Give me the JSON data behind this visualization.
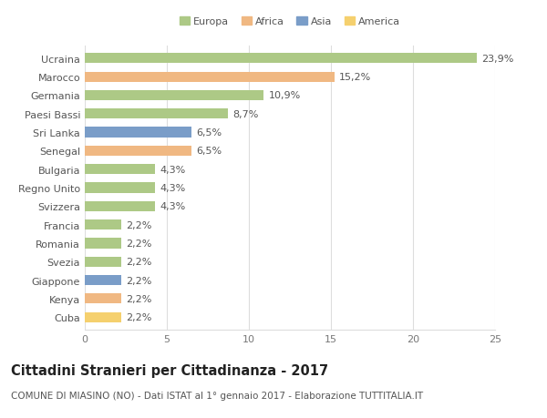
{
  "categories": [
    "Ucraina",
    "Marocco",
    "Germania",
    "Paesi Bassi",
    "Sri Lanka",
    "Senegal",
    "Bulgaria",
    "Regno Unito",
    "Svizzera",
    "Francia",
    "Romania",
    "Svezia",
    "Giappone",
    "Kenya",
    "Cuba"
  ],
  "values": [
    23.9,
    15.2,
    10.9,
    8.7,
    6.5,
    6.5,
    4.3,
    4.3,
    4.3,
    2.2,
    2.2,
    2.2,
    2.2,
    2.2,
    2.2
  ],
  "labels": [
    "23,9%",
    "15,2%",
    "10,9%",
    "8,7%",
    "6,5%",
    "6,5%",
    "4,3%",
    "4,3%",
    "4,3%",
    "2,2%",
    "2,2%",
    "2,2%",
    "2,2%",
    "2,2%",
    "2,2%"
  ],
  "continents": [
    "Europa",
    "Africa",
    "Europa",
    "Europa",
    "Asia",
    "Africa",
    "Europa",
    "Europa",
    "Europa",
    "Europa",
    "Europa",
    "Europa",
    "Asia",
    "Africa",
    "America"
  ],
  "colors": {
    "Europa": "#adc986",
    "Africa": "#f0b882",
    "Asia": "#7a9dc8",
    "America": "#f5d06e"
  },
  "background_color": "#ffffff",
  "grid_color": "#dddddd",
  "title": "Cittadini Stranieri per Cittadinanza - 2017",
  "subtitle": "COMUNE DI MIASINO (NO) - Dati ISTAT al 1° gennaio 2017 - Elaborazione TUTTITALIA.IT",
  "xlim": [
    0,
    25
  ],
  "xticks": [
    0,
    5,
    10,
    15,
    20,
    25
  ],
  "bar_height": 0.55,
  "label_fontsize": 8,
  "tick_fontsize": 8,
  "title_fontsize": 10.5,
  "subtitle_fontsize": 7.5,
  "legend_order": [
    "Europa",
    "Africa",
    "Asia",
    "America"
  ]
}
